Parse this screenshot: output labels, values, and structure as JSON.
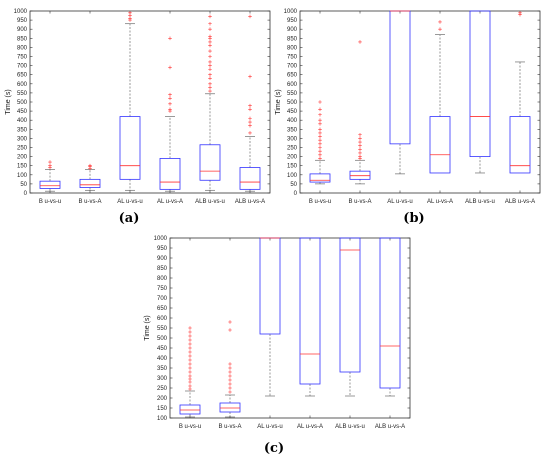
{
  "colors": {
    "box": "#3333ff",
    "median": "#ff3333",
    "outlier": "#ff3333",
    "whisker": "#555555",
    "axis": "#333333"
  },
  "chart_data": [
    {
      "type": "box",
      "panel_label": "(a)",
      "ylabel": "Time (s)",
      "ylim": [
        0,
        1000
      ],
      "yticks": [
        0,
        50,
        100,
        150,
        200,
        250,
        300,
        350,
        400,
        450,
        500,
        550,
        600,
        650,
        700,
        750,
        800,
        850,
        900,
        950,
        1000
      ],
      "categories": [
        "B u-vs-u",
        "B u-vs-A",
        "AL u-vs-u",
        "AL u-vs-A",
        "ALB u-vs-u",
        "ALB u-vs-A"
      ],
      "boxes": [
        {
          "whisker_low": 10,
          "q1": 25,
          "median": 40,
          "q3": 65,
          "whisker_high": 130,
          "outliers": [
            140,
            150,
            170
          ]
        },
        {
          "whisker_low": 15,
          "q1": 30,
          "median": 45,
          "q3": 75,
          "whisker_high": 130,
          "outliers": [
            135,
            145,
            150
          ]
        },
        {
          "whisker_low": 15,
          "q1": 75,
          "median": 150,
          "q3": 420,
          "whisker_high": 930,
          "outliers": [
            950,
            960,
            975,
            990
          ]
        },
        {
          "whisker_low": 10,
          "q1": 20,
          "median": 60,
          "q3": 190,
          "whisker_high": 420,
          "outliers": [
            450,
            460,
            490,
            520,
            540,
            690,
            850
          ]
        },
        {
          "whisker_low": 15,
          "q1": 70,
          "median": 120,
          "q3": 265,
          "whisker_high": 545,
          "outliers": [
            560,
            580,
            600,
            630,
            650,
            680,
            700,
            720,
            750,
            780,
            810,
            830,
            850,
            860,
            900,
            930,
            970
          ]
        },
        {
          "whisker_low": 10,
          "q1": 20,
          "median": 60,
          "q3": 140,
          "whisker_high": 310,
          "outliers": [
            330,
            370,
            390,
            410,
            460,
            480,
            640,
            970
          ]
        }
      ]
    },
    {
      "type": "box",
      "panel_label": "(b)",
      "ylabel": "Time (s)",
      "ylim": [
        0,
        1000
      ],
      "yticks": [
        0,
        50,
        100,
        150,
        200,
        250,
        300,
        350,
        400,
        450,
        500,
        550,
        600,
        650,
        700,
        750,
        800,
        850,
        900,
        950,
        1000
      ],
      "categories": [
        "B u-vs-u",
        "B u-vs-A",
        "AL u-vs-u",
        "AL u-vs-A",
        "ALB u-vs-u",
        "ALB u-vs-A"
      ],
      "boxes": [
        {
          "whisker_low": 50,
          "q1": 60,
          "median": 70,
          "q3": 105,
          "whisker_high": 180,
          "outliers": [
            190,
            210,
            230,
            250,
            270,
            290,
            310,
            330,
            350,
            380,
            400,
            430,
            460,
            500
          ]
        },
        {
          "whisker_low": 50,
          "q1": 75,
          "median": 95,
          "q3": 120,
          "whisker_high": 180,
          "outliers": [
            190,
            200,
            220,
            240,
            260,
            280,
            300,
            320,
            830
          ]
        },
        {
          "whisker_low": 105,
          "q1": 270,
          "median": 1000,
          "q3": 1000,
          "whisker_high": 1000,
          "outliers": []
        },
        {
          "whisker_low": 110,
          "q1": 110,
          "median": 210,
          "q3": 420,
          "whisker_high": 870,
          "outliers": [
            900,
            940
          ]
        },
        {
          "whisker_low": 110,
          "q1": 200,
          "median": 420,
          "q3": 1000,
          "whisker_high": 1000,
          "outliers": []
        },
        {
          "whisker_low": 110,
          "q1": 110,
          "median": 150,
          "q3": 420,
          "whisker_high": 720,
          "outliers": [
            980,
            990
          ]
        }
      ]
    },
    {
      "type": "box",
      "panel_label": "(c)",
      "ylabel": "Time (s)",
      "ylim": [
        100,
        1000
      ],
      "yticks": [
        100,
        150,
        200,
        250,
        300,
        350,
        400,
        450,
        500,
        550,
        600,
        650,
        700,
        750,
        800,
        850,
        900,
        950,
        1000
      ],
      "categories": [
        "B u-vs-u",
        "B u-vs-A",
        "AL u-vs-u",
        "AL u-vs-A",
        "ALB u-vs-u",
        "ALB u-vs-A"
      ],
      "boxes": [
        {
          "whisker_low": 105,
          "q1": 120,
          "median": 140,
          "q3": 165,
          "whisker_high": 235,
          "outliers": [
            245,
            260,
            280,
            295,
            310,
            330,
            350,
            370,
            390,
            410,
            430,
            450,
            470,
            490,
            510,
            530,
            550
          ]
        },
        {
          "whisker_low": 105,
          "q1": 130,
          "median": 150,
          "q3": 175,
          "whisker_high": 215,
          "outliers": [
            230,
            250,
            270,
            290,
            310,
            330,
            350,
            370,
            540,
            580
          ]
        },
        {
          "whisker_low": 210,
          "q1": 520,
          "median": 1000,
          "q3": 1000,
          "whisker_high": 1000,
          "outliers": []
        },
        {
          "whisker_low": 210,
          "q1": 270,
          "median": 420,
          "q3": 1000,
          "whisker_high": 1000,
          "outliers": []
        },
        {
          "whisker_low": 210,
          "q1": 330,
          "median": 940,
          "q3": 1000,
          "whisker_high": 1000,
          "outliers": []
        },
        {
          "whisker_low": 210,
          "q1": 250,
          "median": 460,
          "q3": 1000,
          "whisker_high": 1000,
          "outliers": []
        }
      ]
    }
  ]
}
